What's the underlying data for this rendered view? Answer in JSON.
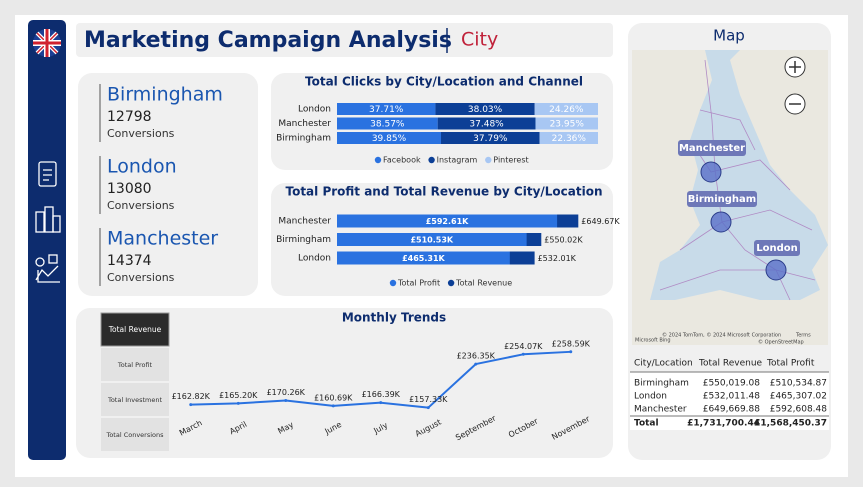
{
  "header": {
    "title": "Marketing Campaign Analysis",
    "subtitle": "City"
  },
  "kpis": [
    {
      "city": "Birmingham",
      "value": 12798,
      "label": "Conversions"
    },
    {
      "city": "London",
      "value": 13080,
      "label": "Conversions"
    },
    {
      "city": "Manchester",
      "value": 14374,
      "label": "Conversions"
    }
  ],
  "chart_data": [
    {
      "type": "stacked-hbar",
      "title": "Total Clicks by City/Location and Channel",
      "categories": [
        "London",
        "Manchester",
        "Birmingham"
      ],
      "xlim": [
        0,
        100
      ],
      "series": [
        {
          "name": "Facebook",
          "color": "#2a72e0",
          "values": [
            37.71,
            38.57,
            39.85
          ],
          "value_labels": [
            "37.71%",
            "38.57%",
            "39.85%"
          ]
        },
        {
          "name": "Instagram",
          "color": "#0c3f96",
          "values": [
            38.03,
            37.48,
            37.79
          ],
          "value_labels": [
            "38.03%",
            "37.48%",
            "37.79%"
          ]
        },
        {
          "name": "Pinterest",
          "color": "#a8c7f3",
          "values": [
            24.26,
            23.95,
            22.36
          ],
          "value_labels": [
            "24.26%",
            "23.95%",
            "22.36%"
          ]
        }
      ]
    },
    {
      "type": "overlap-hbar",
      "title": "Total Profit and Total Revenue by City/Location",
      "categories": [
        "Manchester",
        "Birmingham",
        "London"
      ],
      "xlim": [
        0,
        700000
      ],
      "series": [
        {
          "name": "Total Profit",
          "color": "#2a72e0",
          "values": [
            592608.48,
            510534.87,
            465307.02
          ],
          "value_labels": [
            "£592.61K",
            "£510.53K",
            "£465.31K"
          ]
        },
        {
          "name": "Total Revenue",
          "color": "#0c3f96",
          "values": [
            649669.88,
            550019.08,
            532011.48
          ],
          "value_labels": [
            "£649.67K",
            "£550.02K",
            "£532.01K"
          ]
        }
      ]
    },
    {
      "type": "line",
      "title": "Monthly Trends",
      "color": "#2a72e0",
      "categories": [
        "March",
        "April",
        "May",
        "June",
        "July",
        "August",
        "September",
        "October",
        "November"
      ],
      "values": [
        162820,
        165200,
        170260,
        160690,
        166390,
        157330,
        236350,
        254070,
        258590
      ],
      "value_labels": [
        "£162.82K",
        "£165.20K",
        "£170.26K",
        "£160.69K",
        "£166.39K",
        "£157.33K",
        "£236.35K",
        "£254.07K",
        "£258.59K"
      ],
      "ylim": [
        135000,
        280000
      ],
      "selector": [
        "Total Revenue",
        "Total Profit",
        "Total Investment",
        "Total Conversions"
      ]
    }
  ],
  "map": {
    "title": "Map",
    "places": [
      "Manchester",
      "Birmingham",
      "London"
    ],
    "attribution": "© 2024 TomTom, © 2024 Microsoft Corporation",
    "terms": "Terms",
    "osm": "© OpenStreetMap",
    "provider": "Microsoft Bing"
  },
  "table": {
    "columns": [
      "City/Location",
      "Total Revenue",
      "Total Profit"
    ],
    "rows": [
      [
        "Birmingham",
        "£550,019.08",
        "£510,534.87"
      ],
      [
        "London",
        "£532,011.48",
        "£465,307.02"
      ],
      [
        "Manchester",
        "£649,669.88",
        "£592,608.48"
      ]
    ],
    "total": [
      "Total",
      "£1,731,700.44",
      "£1,568,450.37"
    ]
  }
}
